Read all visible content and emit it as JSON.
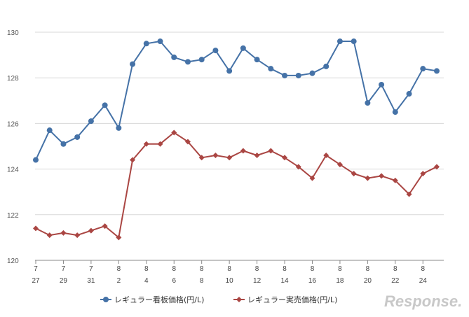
{
  "chart_data": {
    "type": "line",
    "title": "",
    "xlabel": "",
    "ylabel": "",
    "ylim": [
      120,
      130
    ],
    "yticks": [
      120,
      122,
      124,
      126,
      128,
      130
    ],
    "grid": "horizontal",
    "legend_position": "bottom",
    "x_tick_labels": [
      {
        "month": "7",
        "day": "27"
      },
      {
        "month": "7",
        "day": "29"
      },
      {
        "month": "7",
        "day": "31"
      },
      {
        "month": "8",
        "day": "2"
      },
      {
        "month": "8",
        "day": "4"
      },
      {
        "month": "8",
        "day": "6"
      },
      {
        "month": "8",
        "day": "8"
      },
      {
        "month": "8",
        "day": "10"
      },
      {
        "month": "8",
        "day": "12"
      },
      {
        "month": "8",
        "day": "14"
      },
      {
        "month": "8",
        "day": "16"
      },
      {
        "month": "8",
        "day": "18"
      },
      {
        "month": "8",
        "day": "20"
      },
      {
        "month": "8",
        "day": "22"
      },
      {
        "month": "8",
        "day": "24"
      }
    ],
    "series": [
      {
        "name": "レギュラー看板価格(円/L)",
        "color": "#4572a7",
        "marker": "circle",
        "values": [
          124.4,
          125.7,
          125.1,
          125.4,
          126.1,
          126.8,
          125.8,
          128.6,
          129.5,
          129.6,
          128.9,
          128.7,
          128.8,
          129.2,
          128.3,
          129.3,
          128.8,
          128.4,
          128.1,
          128.1,
          128.2,
          128.5,
          129.6,
          129.6,
          126.9,
          127.7,
          126.5,
          127.3,
          128.4,
          128.3
        ]
      },
      {
        "name": "レギュラー実売価格(円/L)",
        "color": "#aa4643",
        "marker": "diamond",
        "values": [
          121.4,
          121.1,
          121.2,
          121.1,
          121.3,
          121.5,
          121.0,
          124.4,
          125.1,
          125.1,
          125.6,
          125.2,
          124.5,
          124.6,
          124.5,
          124.8,
          124.6,
          124.8,
          124.5,
          124.1,
          123.6,
          124.6,
          124.2,
          123.8,
          123.6,
          123.7,
          123.5,
          122.9,
          123.8,
          124.1
        ]
      }
    ]
  },
  "watermark": "Response."
}
